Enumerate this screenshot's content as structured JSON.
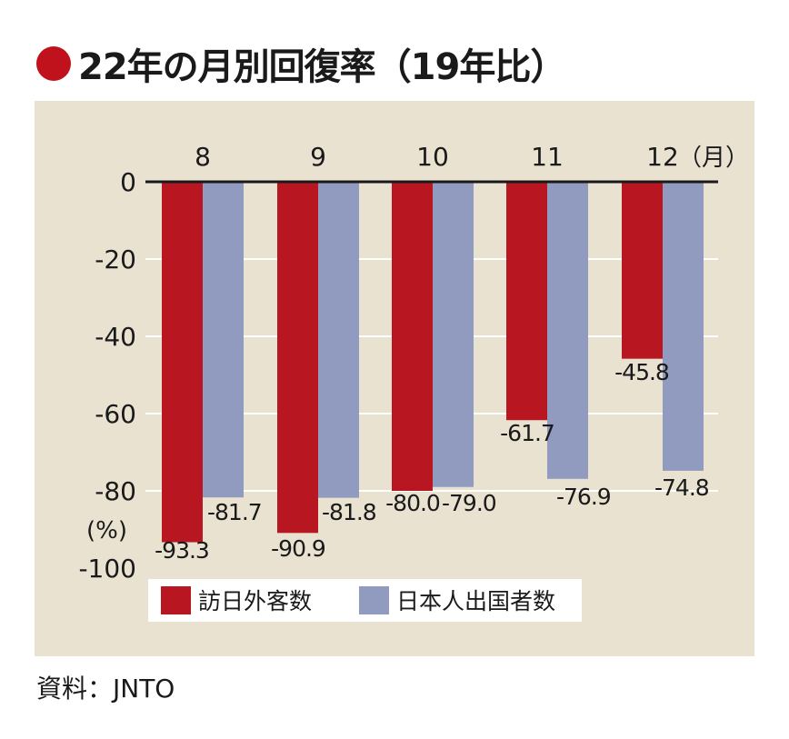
{
  "title": "22年の月別回復率（19年比）",
  "source": "資料：JNTO",
  "colors": {
    "panel_bg": "#eae2d1",
    "inbound": "#b81722",
    "outbound": "#909bbf",
    "title_dot": "#c0121c",
    "axis": "#1a1a1a",
    "grid": "#ffffff"
  },
  "chart_data": {
    "type": "bar",
    "categories": [
      "8",
      "9",
      "10",
      "11",
      "12"
    ],
    "x_unit_label": "（月）",
    "y_unit_label": "(%)",
    "ylim": [
      -100,
      0
    ],
    "yticks": [
      0,
      -20,
      -40,
      -60,
      -80,
      -100
    ],
    "ytick_labels": [
      "0",
      "-20",
      "-40",
      "-60",
      "-80",
      "-100"
    ],
    "grid": true,
    "legend_position": "bottom-center",
    "series": [
      {
        "name": "訪日外客数",
        "color": "#b81722",
        "values": [
          -93.3,
          -90.9,
          -80.0,
          -61.7,
          -45.8
        ],
        "labels": [
          "-93.3",
          "-90.9",
          "-80.0",
          "-61.7",
          "-45.8"
        ]
      },
      {
        "name": "日本人出国者数",
        "color": "#909bbf",
        "values": [
          -81.7,
          -81.8,
          -79.0,
          -76.9,
          -74.8
        ],
        "labels": [
          "-81.7",
          "-81.8",
          "-79.0",
          "-76.9",
          "-74.8"
        ]
      }
    ]
  }
}
